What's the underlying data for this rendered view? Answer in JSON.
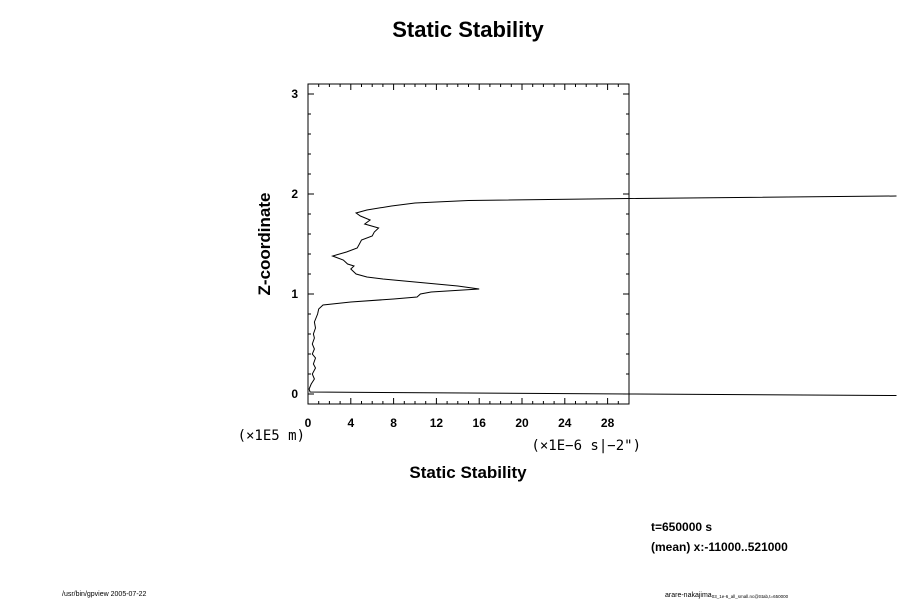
{
  "chart_data": {
    "type": "line",
    "title": "Static Stability",
    "xlabel": "Static Stability",
    "ylabel": "Z-coordinate",
    "x_units": "(×1E−6 s|−2\")",
    "y_units": "(×1E5 m)",
    "x_scale": 1e-06,
    "y_scale": 100000.0,
    "xlim": [
      0,
      30
    ],
    "ylim": [
      -0.1,
      3.1
    ],
    "x_ticks": [
      0,
      4,
      8,
      12,
      16,
      20,
      24,
      28
    ],
    "x_tick_labels": [
      "0",
      "4",
      "8",
      "12",
      "16",
      "20",
      "24",
      "28"
    ],
    "y_ticks": [
      0,
      1,
      2,
      3
    ],
    "y_tick_labels": [
      "0",
      "1",
      "2",
      "3"
    ],
    "grid": false,
    "series": [
      {
        "values": [
          [
            55.0,
            -0.015
          ],
          [
            30.0,
            0.0
          ],
          [
            0.2,
            0.02
          ],
          [
            0.1,
            0.05
          ],
          [
            0.3,
            0.1
          ],
          [
            0.6,
            0.15
          ],
          [
            0.4,
            0.2
          ],
          [
            0.7,
            0.26
          ],
          [
            0.5,
            0.3
          ],
          [
            0.7,
            0.36
          ],
          [
            0.4,
            0.4
          ],
          [
            0.6,
            0.45
          ],
          [
            0.4,
            0.5
          ],
          [
            0.6,
            0.56
          ],
          [
            0.5,
            0.6
          ],
          [
            0.7,
            0.66
          ],
          [
            0.6,
            0.72
          ],
          [
            0.9,
            0.8
          ],
          [
            1.0,
            0.85
          ],
          [
            1.4,
            0.89
          ],
          [
            4.0,
            0.92
          ],
          [
            8.0,
            0.95
          ],
          [
            10.2,
            0.97
          ],
          [
            10.5,
            1.0
          ],
          [
            11.5,
            1.02
          ],
          [
            16.0,
            1.05
          ],
          [
            14.0,
            1.08
          ],
          [
            10.0,
            1.12
          ],
          [
            7.0,
            1.15
          ],
          [
            5.5,
            1.17
          ],
          [
            4.5,
            1.2
          ],
          [
            4.0,
            1.25
          ],
          [
            4.3,
            1.28
          ],
          [
            3.7,
            1.3
          ],
          [
            3.3,
            1.34
          ],
          [
            2.3,
            1.38
          ],
          [
            3.6,
            1.42
          ],
          [
            4.6,
            1.46
          ],
          [
            4.8,
            1.5
          ],
          [
            5.0,
            1.54
          ],
          [
            6.0,
            1.58
          ],
          [
            6.2,
            1.62
          ],
          [
            6.6,
            1.66
          ],
          [
            5.3,
            1.7
          ],
          [
            5.8,
            1.74
          ],
          [
            4.9,
            1.78
          ],
          [
            4.5,
            1.81
          ],
          [
            5.5,
            1.84
          ],
          [
            7.8,
            1.88
          ],
          [
            10.0,
            1.91
          ],
          [
            15.0,
            1.935
          ],
          [
            30.0,
            1.955
          ],
          [
            55.0,
            1.98
          ]
        ]
      }
    ]
  },
  "info": {
    "time": "t=650000 s",
    "mean": "(mean) x:-11000..521000"
  },
  "footer": {
    "left": "/usr/bin/gpview 2005-07-22",
    "right_main": "arare-nakajima",
    "right_sub": "03_1e-6_all_small.nc@Stab,t=650000"
  }
}
